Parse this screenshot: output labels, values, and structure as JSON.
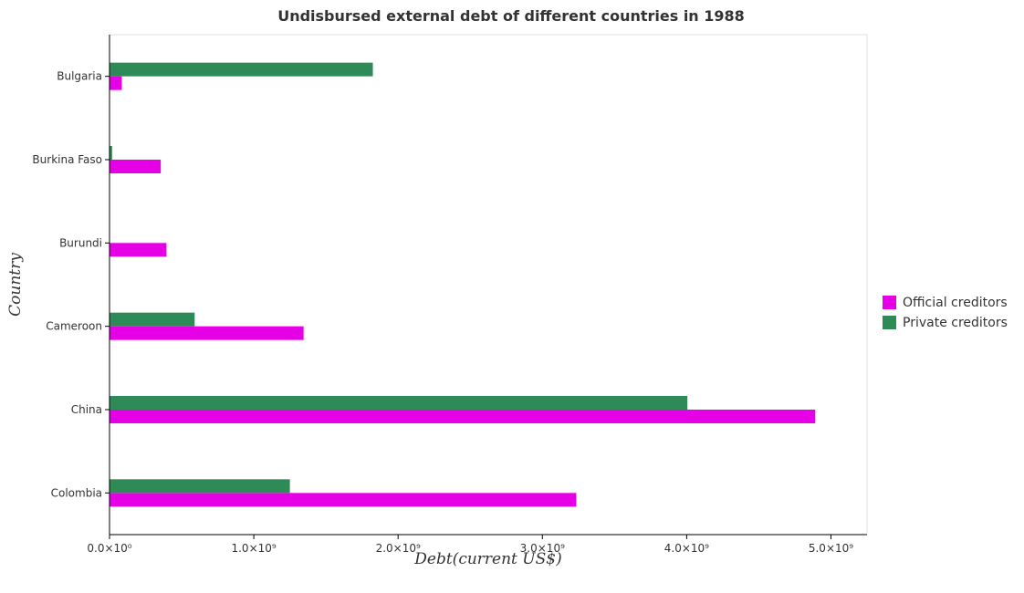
{
  "chart_data": {
    "type": "bar",
    "orientation": "horizontal",
    "title": "Undisbursed external debt of different countries in 1988",
    "xlabel": "Debt(current US$)",
    "ylabel": "Country",
    "categories": [
      "Bulgaria",
      "Burkina Faso",
      "Burundi",
      "Cameroon",
      "China",
      "Colombia"
    ],
    "series": [
      {
        "name": "Official creditors",
        "color": "#e600e6",
        "values": [
          85000000,
          355000000,
          395000000,
          1345000000,
          4890000000,
          3235000000
        ]
      },
      {
        "name": "Private creditors",
        "color": "#2e8b57",
        "values": [
          1825000000,
          18000000,
          2000000,
          590000000,
          4005000000,
          1250000000
        ]
      }
    ],
    "xlim": [
      0,
      5250000000
    ],
    "xticks": [
      0,
      1000000000,
      2000000000,
      3000000000,
      4000000000,
      5000000000
    ],
    "xtick_labels": [
      "0.0×10⁰",
      "1.0×10⁹",
      "2.0×10⁹",
      "3.0×10⁹",
      "4.0×10⁹",
      "5.0×10⁹"
    ],
    "grid": false,
    "legend_position": "right"
  }
}
